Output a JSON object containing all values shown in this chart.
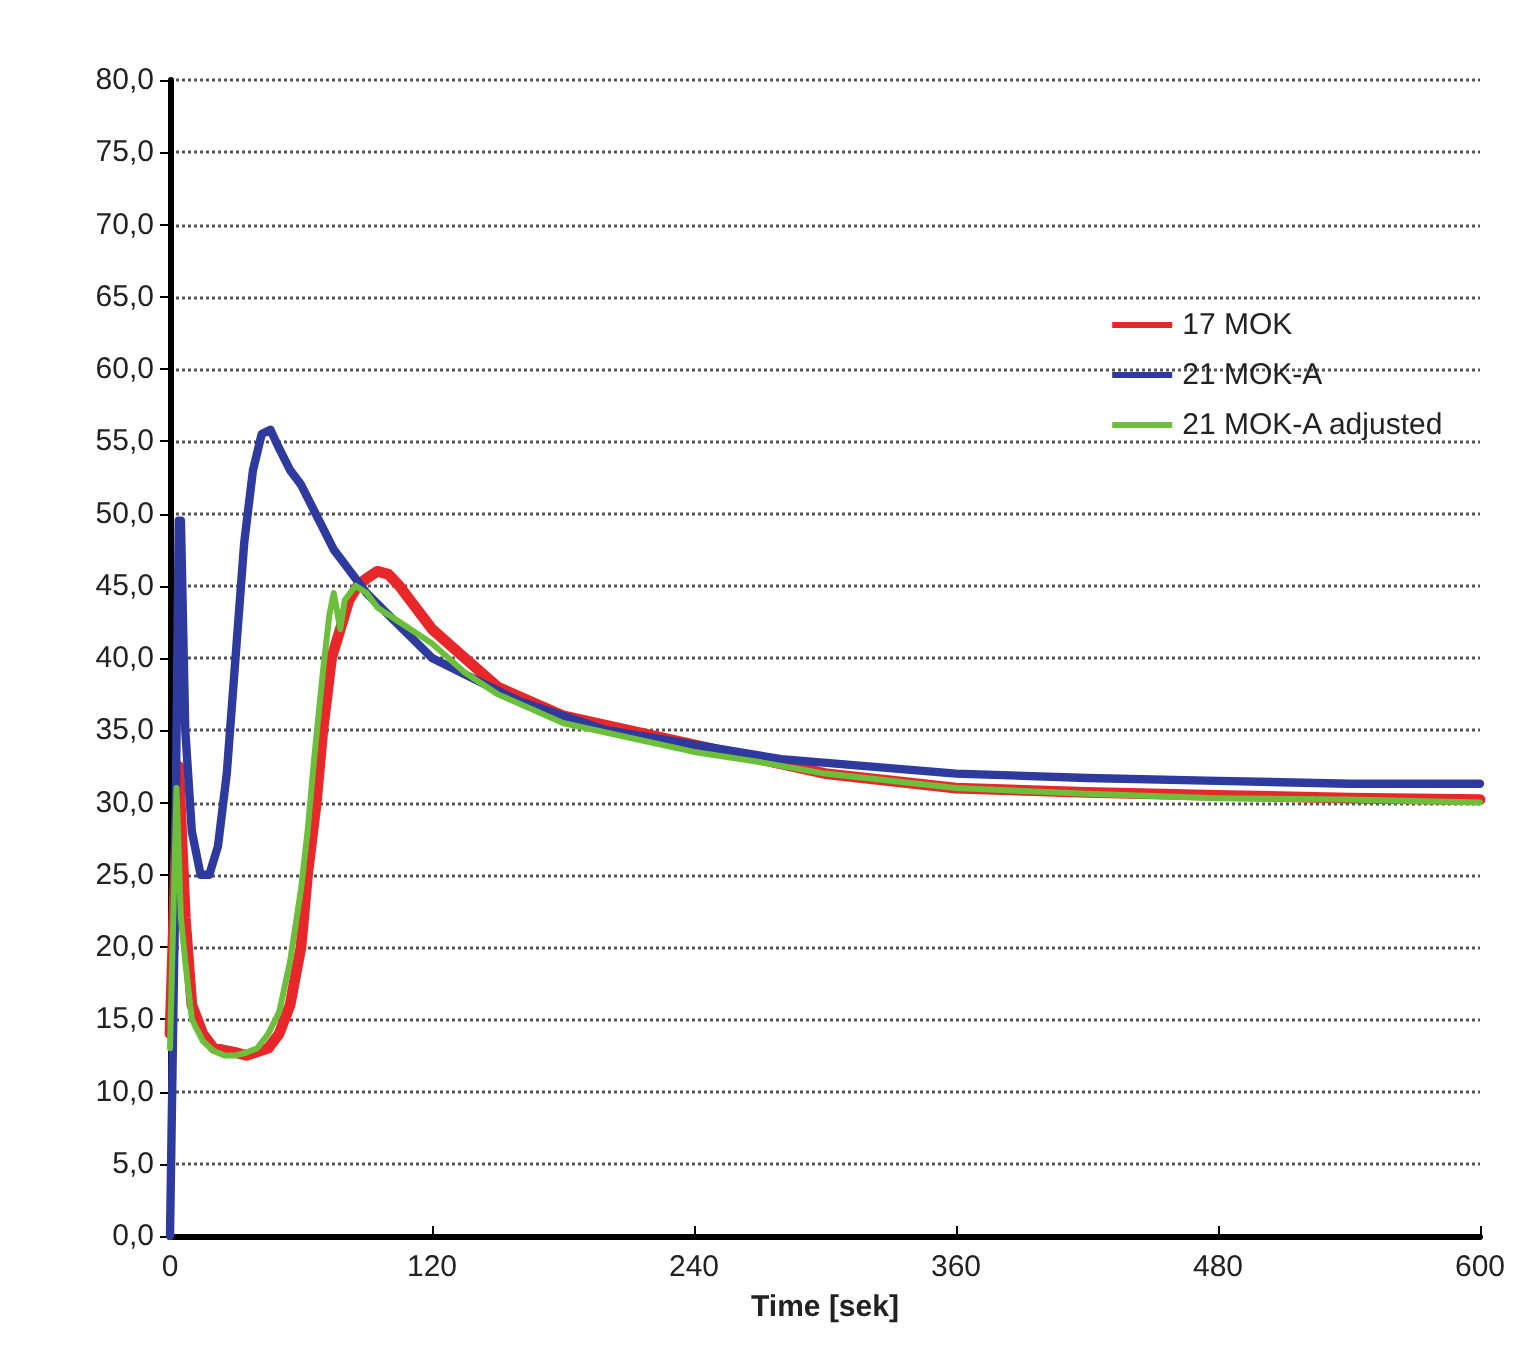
{
  "chart_data": {
    "type": "line",
    "xlabel": "Time [sek]",
    "xlim": [
      0,
      600
    ],
    "xticks": [
      0,
      120,
      240,
      360,
      480,
      600
    ],
    "ylim": [
      0,
      80
    ],
    "yticks": [
      {
        "value": 0,
        "label": "0,0"
      },
      {
        "value": 5,
        "label": "5,0"
      },
      {
        "value": 10,
        "label": "10,0"
      },
      {
        "value": 15,
        "label": "15,0"
      },
      {
        "value": 20,
        "label": "20,0"
      },
      {
        "value": 25,
        "label": "25,0"
      },
      {
        "value": 30,
        "label": "30,0"
      },
      {
        "value": 35,
        "label": "35,0"
      },
      {
        "value": 40,
        "label": "40,0"
      },
      {
        "value": 45,
        "label": "45,0"
      },
      {
        "value": 50,
        "label": "50,0"
      },
      {
        "value": 55,
        "label": "55,0"
      },
      {
        "value": 60,
        "label": "60,0"
      },
      {
        "value": 65,
        "label": "65,0"
      },
      {
        "value": 70,
        "label": "70,0"
      },
      {
        "value": 75,
        "label": "75,0"
      },
      {
        "value": 80,
        "label": "80,0"
      }
    ],
    "grid": "y",
    "legend": "top right",
    "marker": "none",
    "line_style": "solid",
    "series": [
      {
        "name": "17 MOK",
        "color": "#e8272a",
        "x": [
          0,
          4,
          7,
          10,
          15,
          20,
          30,
          35,
          45,
          50,
          55,
          60,
          63,
          67,
          70,
          74,
          78,
          82,
          86,
          90,
          95,
          100,
          105,
          110,
          120,
          135,
          150,
          165,
          180,
          210,
          240,
          270,
          300,
          330,
          360,
          420,
          480,
          540,
          600
        ],
        "values": [
          14,
          32.5,
          22,
          16,
          14,
          13,
          12.7,
          12.5,
          13,
          14,
          16,
          20,
          25,
          30,
          35,
          40,
          42,
          44,
          45,
          45.5,
          46,
          45.8,
          45,
          44,
          42,
          40,
          38,
          37,
          36,
          35,
          34,
          33,
          32,
          31.5,
          31,
          30.7,
          30.5,
          30.3,
          30.2
        ]
      },
      {
        "name": "21 MOK-A",
        "color": "#2e3a9e",
        "x": [
          0,
          2,
          4,
          5,
          7,
          10,
          14,
          18,
          22,
          26,
          30,
          34,
          38,
          42,
          46,
          50,
          55,
          60,
          65,
          70,
          75,
          80,
          85,
          90,
          100,
          110,
          120,
          140,
          160,
          180,
          200,
          240,
          280,
          320,
          360,
          420,
          480,
          540,
          600
        ],
        "values": [
          0,
          20,
          49.5,
          49.5,
          35,
          28,
          25,
          25,
          27,
          32,
          40,
          48,
          53,
          55.5,
          55.8,
          54.5,
          53,
          52,
          50.5,
          49,
          47.5,
          46.5,
          45.5,
          44.5,
          43,
          41.5,
          40,
          38.5,
          37,
          36,
          35,
          34,
          33,
          32.5,
          32,
          31.7,
          31.5,
          31.3,
          31.3
        ]
      },
      {
        "name": "21 MOK-A adjusted",
        "color": "#6bbf3a",
        "x": [
          0,
          3,
          5,
          7,
          10,
          15,
          20,
          25,
          30,
          35,
          40,
          45,
          50,
          55,
          60,
          63,
          66,
          70,
          73,
          75,
          78,
          80,
          85,
          90,
          95,
          100,
          105,
          110,
          120,
          135,
          150,
          165,
          180,
          210,
          240,
          270,
          300,
          330,
          360,
          420,
          480,
          540,
          600
        ],
        "values": [
          13,
          31,
          22,
          19,
          15,
          13.5,
          12.8,
          12.5,
          12.5,
          12.7,
          13,
          14,
          15.5,
          19,
          24,
          28,
          33,
          39,
          43,
          44.5,
          42,
          44,
          45,
          44.5,
          43.5,
          43,
          42.5,
          42,
          41,
          39,
          37.5,
          36.5,
          35.5,
          34.5,
          33.5,
          32.8,
          32,
          31.5,
          31,
          30.6,
          30.3,
          30.2,
          30
        ]
      }
    ]
  }
}
